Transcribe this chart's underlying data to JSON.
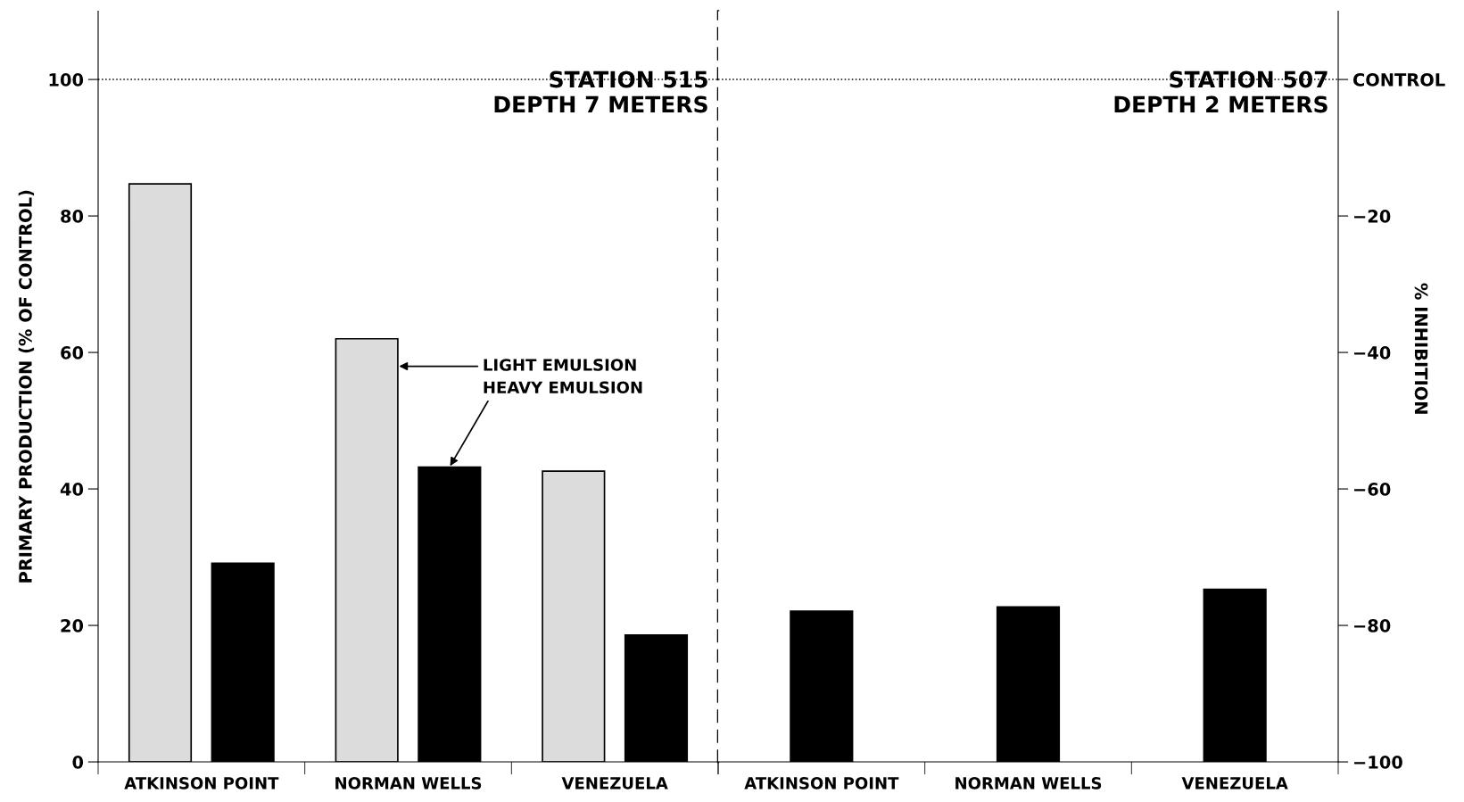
{
  "chart_data": [
    {
      "type": "bar",
      "categories": [
        "ATKINSON POINT",
        "NORMAN WELLS",
        "VENEZUELA"
      ],
      "series": [
        {
          "name": "LIGHT EMULSION",
          "color": "#dcdcdc",
          "values": [
            84.7,
            62.0,
            42.6
          ]
        },
        {
          "name": "HEAVY EMULSION",
          "color": "#000000",
          "values": [
            29.1,
            43.2,
            18.6
          ]
        }
      ],
      "ylabel": "PRIMARY PRODUCTION (% OF CONTROL)",
      "ylim": [
        0,
        110
      ],
      "yticks": [
        0,
        20,
        40,
        60,
        80,
        100
      ],
      "ref_lines": [
        {
          "axis": "y",
          "value": 100,
          "line_style": "dotted"
        }
      ],
      "annotations": [
        "STATION 515\nDEPTH 7 METERS"
      ],
      "grid": false
    },
    {
      "type": "bar",
      "categories": [
        "ATKINSON POINT",
        "NORMAN WELLS",
        "VENEZUELA"
      ],
      "series": [
        {
          "color": "#000000",
          "axis": "y2",
          "base": [
            -100,
            -100,
            -100
          ],
          "values": [
            22.1,
            22.7,
            25.3
          ]
        }
      ],
      "y2label": "% INHIBITION",
      "y2lim": [
        -100,
        10
      ],
      "y2ticks": [
        -100,
        -80,
        -60,
        -40,
        -20,
        {
          "value": 0,
          "label": "CONTROL"
        }
      ],
      "ref_lines": [
        {
          "axis": "y2",
          "value": 0,
          "line_style": "dotted"
        }
      ],
      "annotations": [
        "STATION 507\nDEPTH 2 METERS"
      ],
      "grid": false
    }
  ]
}
